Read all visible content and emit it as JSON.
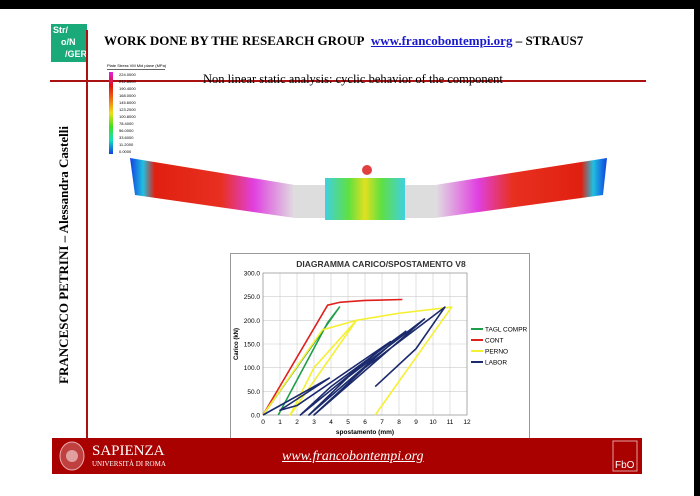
{
  "logo": {
    "text": [
      "Str/",
      "o/N",
      "/GER"
    ]
  },
  "header": {
    "prefix": "WORK DONE BY THE RESEARCH GROUP",
    "link": "www.francobontempi.org",
    "suffix": "– STRAUS7"
  },
  "subtitle": "Non linear static analysis: cyclic behavior of the component",
  "authors": "FRANCESCO PETRINI – Alessandra Castelli",
  "fem_legend": {
    "title": "Plate Stress VM Mid plane (MPa)",
    "values": [
      "224.0000",
      "212.8000",
      "190.4000",
      "168.0000",
      "145.6000",
      "123.2000",
      "100.8000",
      "78.4000",
      "56.0000",
      "33.6000",
      "11.2000",
      "0.0000"
    ]
  },
  "footer": {
    "university": "SAPIENZA",
    "university_sub": "UNIVERSITÀ DI ROMA",
    "url": "www.francobontempi.org"
  },
  "chart_data": {
    "type": "line",
    "title": "DIAGRAMMA CARICO/SPOSTAMENTO V8",
    "xlabel": "spostamento (mm)",
    "ylabel": "Carico (kN)",
    "xlim": [
      0,
      12
    ],
    "ylim": [
      0,
      300
    ],
    "xticks": [
      "0",
      "1",
      "2",
      "3",
      "4",
      "5",
      "6",
      "7",
      "8",
      "9",
      "10",
      "11",
      "12"
    ],
    "yticks": [
      "0.0",
      "50.0",
      "100.0",
      "150.0",
      "200.0",
      "250.0",
      "300.0"
    ],
    "grid": true,
    "legend": "right",
    "series": [
      {
        "name": "TAGL COMPR",
        "color": "#1f9e4a",
        "points": [
          [
            0,
            0
          ],
          [
            4.5,
            228
          ],
          [
            3.8,
            195
          ],
          [
            0.9,
            0
          ]
        ]
      },
      {
        "name": "CONT",
        "color": "#e0201c",
        "points": [
          [
            0,
            0
          ],
          [
            3.8,
            232
          ],
          [
            4.5,
            238
          ],
          [
            6,
            242
          ],
          [
            8.2,
            244
          ]
        ]
      },
      {
        "name": "PERNO",
        "color": "#f5f032",
        "points": [
          [
            0,
            0
          ],
          [
            3.5,
            180
          ],
          [
            5.5,
            200
          ],
          [
            1.6,
            0
          ],
          [
            3,
            100
          ],
          [
            5.5,
            200
          ],
          [
            8,
            215
          ],
          [
            11.1,
            228
          ],
          [
            6.6,
            0
          ]
        ]
      },
      {
        "name": "LABOR",
        "color": "#1a2a6c",
        "points": [
          [
            0,
            0
          ],
          [
            3.9,
            78
          ],
          [
            1,
            10
          ],
          [
            2,
            20
          ],
          [
            7.5,
            155
          ],
          [
            2.2,
            0
          ],
          [
            4,
            60
          ],
          [
            8.4,
            177
          ],
          [
            2.7,
            0
          ],
          [
            5,
            80
          ],
          [
            9.5,
            203
          ],
          [
            3,
            0
          ],
          [
            6,
            100
          ],
          [
            10.7,
            228
          ],
          [
            9,
            140
          ],
          [
            6.6,
            60
          ]
        ]
      }
    ]
  }
}
